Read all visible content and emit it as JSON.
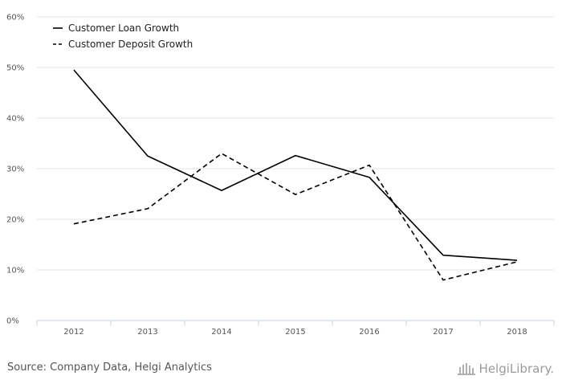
{
  "chart_data": {
    "type": "line",
    "categories": [
      "2012",
      "2013",
      "2014",
      "2015",
      "2016",
      "2017",
      "2018"
    ],
    "ylim": [
      0,
      60
    ],
    "yticks": [
      "0%",
      "10%",
      "20%",
      "30%",
      "40%",
      "50%",
      "60%"
    ],
    "grid": true,
    "legend_position": "top-left",
    "series": [
      {
        "name": "Customer Loan Growth",
        "values": [
          49.5,
          32.5,
          25.7,
          32.6,
          28.3,
          12.9,
          11.9
        ],
        "style": "solid",
        "color": "#000000"
      },
      {
        "name": "Customer Deposit Growth",
        "values": [
          19.1,
          22.1,
          33.0,
          24.9,
          30.7,
          8.0,
          11.6
        ],
        "style": "dashed",
        "color": "#000000"
      }
    ]
  },
  "footer": {
    "source": "Source: Company Data, Helgi Analytics",
    "brand": "HelgiLibrary."
  },
  "colors": {
    "grid": "#e6e6e6",
    "axis": "#c8d3e0",
    "text": "#555555"
  }
}
